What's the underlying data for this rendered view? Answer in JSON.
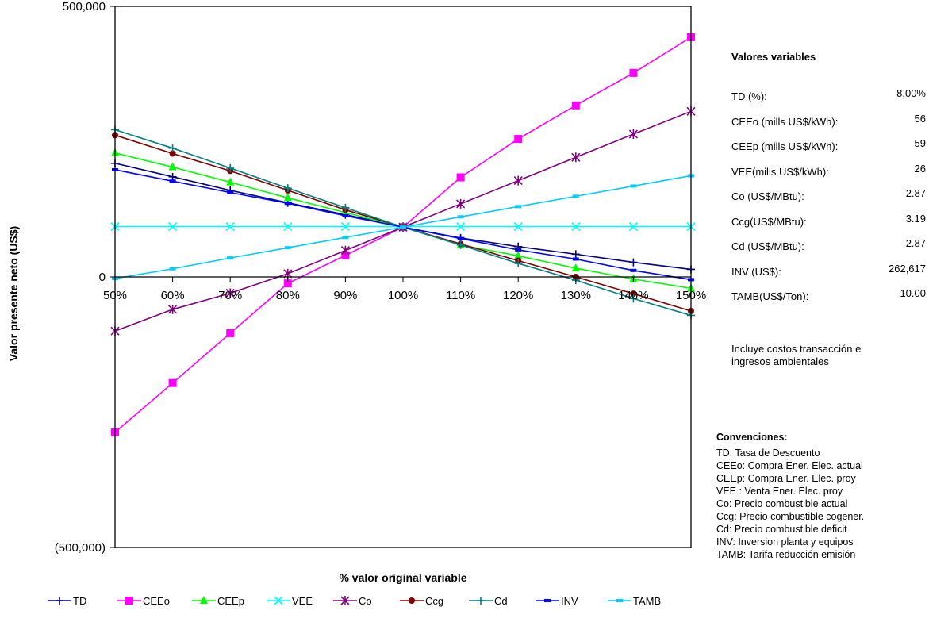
{
  "chart_data": {
    "type": "line",
    "ylabel": "Valor presente neto (US$)",
    "xlabel": "% valor original variable",
    "categories": [
      "50%",
      "60%",
      "70%",
      "80%",
      "90%",
      "100%",
      "110%",
      "120%",
      "130%",
      "140%",
      "150%"
    ],
    "x": [
      50,
      60,
      70,
      80,
      90,
      100,
      110,
      120,
      130,
      140,
      150
    ],
    "ylim": [
      -500000,
      500000
    ],
    "y_ticks": [
      {
        "value": 500000,
        "label": "500,000"
      },
      {
        "value": 0,
        "label": "0"
      },
      {
        "value": -500000,
        "label": "(500,000)"
      }
    ],
    "grid": false,
    "legend_position": "bottom",
    "series": [
      {
        "name": "TD",
        "color": "#000080",
        "marker": "plus",
        "values": [
          210000,
          185000,
          160000,
          137000,
          115000,
          92000,
          72000,
          56000,
          42000,
          27000,
          14000
        ]
      },
      {
        "name": "CEEo",
        "color": "#ff00ff",
        "marker": "square",
        "values": [
          -287000,
          -196000,
          -104000,
          -12000,
          40000,
          92000,
          184000,
          255000,
          317000,
          377000,
          443000
        ]
      },
      {
        "name": "CEEp",
        "color": "#00ff00",
        "marker": "triangle",
        "values": [
          229000,
          203000,
          175000,
          146000,
          119000,
          92000,
          59000,
          39000,
          16000,
          -4000,
          -21000
        ]
      },
      {
        "name": "VEE",
        "color": "#00ffff",
        "marker": "x",
        "values": [
          93000,
          93000,
          93000,
          93000,
          93000,
          93000,
          93000,
          93000,
          93000,
          93000,
          93000
        ]
      },
      {
        "name": "Co",
        "color": "#800080",
        "marker": "star",
        "values": [
          -100000,
          -60000,
          -30000,
          6000,
          49000,
          92000,
          135000,
          178000,
          221000,
          264000,
          306000
        ]
      },
      {
        "name": "Ccg",
        "color": "#800000",
        "marker": "circle",
        "values": [
          262000,
          228000,
          196000,
          160000,
          124000,
          92000,
          61000,
          30000,
          0,
          -31000,
          -63000
        ]
      },
      {
        "name": "Cd",
        "color": "#008080",
        "marker": "plus",
        "values": [
          272000,
          238000,
          201000,
          164000,
          128000,
          92000,
          59000,
          25000,
          -6000,
          -40000,
          -71000
        ]
      },
      {
        "name": "INV",
        "color": "#0000ff",
        "marker": "dash",
        "values": [
          198000,
          177000,
          156000,
          136000,
          113000,
          92000,
          71000,
          50000,
          33000,
          12000,
          -5000
        ]
      },
      {
        "name": "TAMB",
        "color": "#00ccff",
        "marker": "dash",
        "values": [
          -3000,
          15000,
          35000,
          54000,
          73000,
          92000,
          111000,
          130000,
          149000,
          168000,
          187000
        ]
      }
    ]
  },
  "side_panel": {
    "values_title": "Valores variables",
    "values": [
      {
        "label": "TD (%):",
        "value": "8.00%"
      },
      {
        "label": "CEEo (mills US$/kWh):",
        "value": "56"
      },
      {
        "label": "CEEp (mills US$/kWh):",
        "value": "59"
      },
      {
        "label": "VEE(mills US$/kWh):",
        "value": "26"
      },
      {
        "label": "Co (US$/MBtu):",
        "value": "2.87"
      },
      {
        "label": "Ccg(US$/MBtu):",
        "value": "3.19"
      },
      {
        "label": "Cd (US$/MBtu):",
        "value": "2.87"
      },
      {
        "label": "INV (US$):",
        "value": "262,617"
      },
      {
        "label": "TAMB(US$/Ton):",
        "value": "10.00"
      }
    ],
    "note_line1": "Incluye costos transacción e",
    "note_line2": "ingresos ambientales",
    "conventions_title": "Convenciones:",
    "conventions": [
      "TD: Tasa de Descuento",
      "CEEo: Compra Ener. Elec. actual",
      "CEEp: Compra Ener. Elec. proy",
      "VEE : Venta Ener. Elec. proy",
      "Co:  Precio combustible actual",
      "Ccg: Precio combustible cogener.",
      "Cd: Precio combustible deficit",
      "INV: Inversion planta y equipos",
      "TAMB: Tarifa reducción emisión"
    ]
  }
}
